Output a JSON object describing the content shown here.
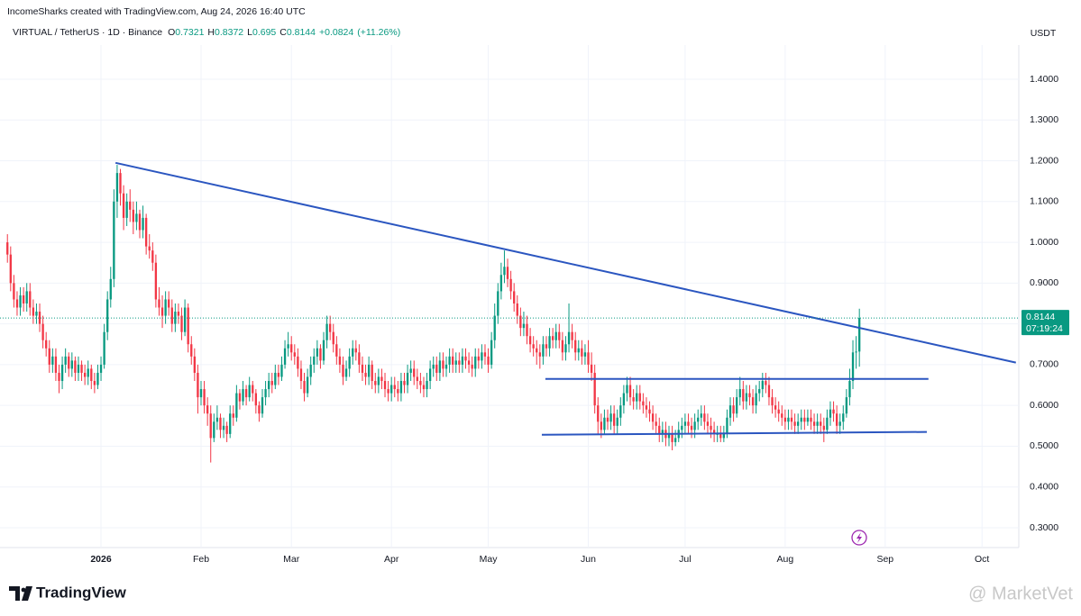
{
  "header": {
    "credit": "IncomeSharks created with TradingView.com, Aug 24, 2026 16:40 UTC",
    "symbol": "VIRTUAL / TetherUS · 1D · Binance",
    "o_label": "O",
    "h_label": "H",
    "l_label": "L",
    "c_label": "C",
    "change": "+0.0824",
    "change_percent": "(+11.26%)",
    "currency": "USDT",
    "countdown": "07:19:24"
  },
  "footer": {
    "logo": "TradingView",
    "watermark": "@ MarketVet"
  },
  "chart_data": {
    "type": "candlestick",
    "up_color": "#089981",
    "down_color": "#f23645",
    "grid": true,
    "xlim": [
      -31.3,
      284.4
    ],
    "ylim": [
      0.2514,
      1.4839
    ],
    "xticks": [
      {
        "value": 0,
        "label": "2026"
      },
      {
        "value": 31,
        "label": "Feb"
      },
      {
        "value": 59,
        "label": "Mar"
      },
      {
        "value": 90,
        "label": "Apr"
      },
      {
        "value": 120,
        "label": "May"
      },
      {
        "value": 151,
        "label": "Jun"
      },
      {
        "value": 181,
        "label": "Jul"
      },
      {
        "value": 212,
        "label": "Aug"
      },
      {
        "value": 243,
        "label": "Sep"
      },
      {
        "value": 273,
        "label": "Oct"
      }
    ],
    "yticks": [
      {
        "value": 0.3,
        "label": "0.3000"
      },
      {
        "value": 0.4,
        "label": "0.4000"
      },
      {
        "value": 0.5,
        "label": "0.5000"
      },
      {
        "value": 0.6,
        "label": "0.6000"
      },
      {
        "value": 0.7,
        "label": "0.7000"
      },
      {
        "value": 0.8,
        "label": "0.8000"
      },
      {
        "value": 0.9,
        "label": "0.9000"
      },
      {
        "value": 1.0,
        "label": "1.0000"
      },
      {
        "value": 1.1,
        "label": "1.1000"
      },
      {
        "value": 1.2,
        "label": "1.2000"
      },
      {
        "value": 1.3,
        "label": "1.3000"
      },
      {
        "value": 1.4,
        "label": "1.4000"
      }
    ],
    "x": [
      -29,
      -28,
      -27,
      -26,
      -25,
      -24,
      -23,
      -22,
      -21,
      -20,
      -19,
      -18,
      -17,
      -16,
      -15,
      -14,
      -13,
      -12,
      -11,
      -10,
      -9,
      -8,
      -7,
      -6,
      -5,
      -4,
      -3,
      -2,
      -1,
      0,
      1,
      2,
      3,
      4,
      5,
      6,
      7,
      8,
      9,
      10,
      11,
      12,
      13,
      14,
      15,
      16,
      17,
      18,
      19,
      20,
      21,
      22,
      23,
      24,
      25,
      26,
      27,
      28,
      29,
      30,
      31,
      32,
      33,
      34,
      35,
      36,
      37,
      38,
      39,
      40,
      41,
      42,
      43,
      44,
      45,
      46,
      47,
      48,
      49,
      50,
      51,
      52,
      53,
      54,
      55,
      56,
      57,
      58,
      59,
      60,
      61,
      62,
      63,
      64,
      65,
      66,
      67,
      68,
      69,
      70,
      71,
      72,
      73,
      74,
      75,
      76,
      77,
      78,
      79,
      80,
      81,
      82,
      83,
      84,
      85,
      86,
      87,
      88,
      89,
      90,
      91,
      92,
      93,
      94,
      95,
      96,
      97,
      98,
      99,
      100,
      101,
      102,
      103,
      104,
      105,
      106,
      107,
      108,
      109,
      110,
      111,
      112,
      113,
      114,
      115,
      116,
      117,
      118,
      119,
      120,
      121,
      122,
      123,
      124,
      125,
      126,
      127,
      128,
      129,
      130,
      131,
      132,
      133,
      134,
      135,
      136,
      137,
      138,
      139,
      140,
      141,
      142,
      143,
      144,
      145,
      146,
      147,
      148,
      149,
      150,
      151,
      152,
      153,
      154,
      155,
      156,
      157,
      158,
      159,
      160,
      161,
      162,
      163,
      164,
      165,
      166,
      167,
      168,
      169,
      170,
      171,
      172,
      173,
      174,
      175,
      176,
      177,
      178,
      179,
      180,
      181,
      182,
      183,
      184,
      185,
      186,
      187,
      188,
      189,
      190,
      191,
      192,
      193,
      194,
      195,
      196,
      197,
      198,
      199,
      200,
      201,
      202,
      203,
      204,
      205,
      206,
      207,
      208,
      209,
      210,
      211,
      212,
      213,
      214,
      215,
      216,
      217,
      218,
      219,
      220,
      221,
      222,
      223,
      224,
      225,
      226,
      227,
      228,
      229,
      230,
      231,
      232,
      233,
      234,
      235
    ],
    "open": [
      1.0,
      0.97,
      0.9,
      0.86,
      0.84,
      0.87,
      0.85,
      0.88,
      0.84,
      0.82,
      0.83,
      0.8,
      0.76,
      0.74,
      0.7,
      0.72,
      0.68,
      0.66,
      0.7,
      0.72,
      0.69,
      0.71,
      0.68,
      0.7,
      0.68,
      0.67,
      0.69,
      0.66,
      0.65,
      0.68,
      0.7,
      0.78,
      0.86,
      0.91,
      1.1,
      1.17,
      1.12,
      1.06,
      1.1,
      1.08,
      1.05,
      1.07,
      1.03,
      1.06,
      0.99,
      0.98,
      0.95,
      0.86,
      0.84,
      0.82,
      0.86,
      0.84,
      0.8,
      0.83,
      0.82,
      0.78,
      0.84,
      0.75,
      0.72,
      0.68,
      0.62,
      0.64,
      0.6,
      0.58,
      0.52,
      0.56,
      0.57,
      0.54,
      0.55,
      0.53,
      0.58,
      0.57,
      0.63,
      0.61,
      0.64,
      0.62,
      0.65,
      0.63,
      0.6,
      0.58,
      0.62,
      0.64,
      0.66,
      0.65,
      0.68,
      0.67,
      0.7,
      0.74,
      0.75,
      0.73,
      0.72,
      0.69,
      0.66,
      0.63,
      0.67,
      0.7,
      0.72,
      0.74,
      0.71,
      0.76,
      0.8,
      0.78,
      0.75,
      0.72,
      0.7,
      0.67,
      0.69,
      0.72,
      0.74,
      0.73,
      0.7,
      0.68,
      0.67,
      0.7,
      0.66,
      0.65,
      0.67,
      0.66,
      0.64,
      0.63,
      0.65,
      0.64,
      0.63,
      0.66,
      0.65,
      0.68,
      0.69,
      0.67,
      0.66,
      0.65,
      0.64,
      0.66,
      0.69,
      0.7,
      0.68,
      0.71,
      0.69,
      0.7,
      0.72,
      0.7,
      0.71,
      0.7,
      0.72,
      0.71,
      0.7,
      0.69,
      0.72,
      0.71,
      0.73,
      0.72,
      0.7,
      0.76,
      0.82,
      0.88,
      0.92,
      0.94,
      0.91,
      0.88,
      0.85,
      0.82,
      0.79,
      0.8,
      0.77,
      0.75,
      0.74,
      0.73,
      0.72,
      0.75,
      0.74,
      0.77,
      0.76,
      0.78,
      0.76,
      0.73,
      0.75,
      0.78,
      0.76,
      0.73,
      0.74,
      0.72,
      0.73,
      0.7,
      0.68,
      0.6,
      0.56,
      0.54,
      0.57,
      0.56,
      0.58,
      0.55,
      0.57,
      0.6,
      0.63,
      0.65,
      0.62,
      0.61,
      0.63,
      0.61,
      0.6,
      0.59,
      0.58,
      0.56,
      0.55,
      0.53,
      0.54,
      0.52,
      0.53,
      0.51,
      0.52,
      0.54,
      0.55,
      0.56,
      0.55,
      0.54,
      0.56,
      0.57,
      0.58,
      0.56,
      0.55,
      0.54,
      0.53,
      0.53,
      0.52,
      0.53,
      0.57,
      0.6,
      0.58,
      0.62,
      0.64,
      0.61,
      0.63,
      0.62,
      0.6,
      0.63,
      0.64,
      0.66,
      0.65,
      0.62,
      0.6,
      0.59,
      0.58,
      0.57,
      0.56,
      0.57,
      0.56,
      0.55,
      0.56,
      0.57,
      0.56,
      0.57,
      0.56,
      0.55,
      0.56,
      0.55,
      0.54,
      0.57,
      0.59,
      0.58,
      0.55,
      0.56,
      0.58,
      0.62,
      0.66,
      0.73,
      0.7321
    ],
    "high": [
      1.02,
      0.99,
      0.92,
      0.88,
      0.89,
      0.89,
      0.9,
      0.9,
      0.86,
      0.85,
      0.85,
      0.82,
      0.78,
      0.76,
      0.74,
      0.74,
      0.7,
      0.72,
      0.74,
      0.73,
      0.73,
      0.72,
      0.72,
      0.71,
      0.7,
      0.71,
      0.7,
      0.68,
      0.7,
      0.72,
      0.8,
      0.88,
      0.94,
      1.13,
      1.19,
      1.18,
      1.14,
      1.12,
      1.13,
      1.1,
      1.1,
      1.08,
      1.09,
      1.07,
      1.02,
      1.0,
      0.97,
      0.89,
      0.87,
      0.88,
      0.88,
      0.86,
      0.85,
      0.85,
      0.84,
      0.86,
      0.85,
      0.77,
      0.74,
      0.7,
      0.66,
      0.66,
      0.62,
      0.6,
      0.58,
      0.6,
      0.58,
      0.57,
      0.56,
      0.6,
      0.6,
      0.65,
      0.64,
      0.66,
      0.65,
      0.67,
      0.66,
      0.64,
      0.61,
      0.64,
      0.66,
      0.68,
      0.68,
      0.7,
      0.7,
      0.72,
      0.76,
      0.78,
      0.77,
      0.75,
      0.74,
      0.71,
      0.68,
      0.69,
      0.72,
      0.74,
      0.76,
      0.75,
      0.78,
      0.82,
      0.82,
      0.8,
      0.77,
      0.74,
      0.72,
      0.71,
      0.74,
      0.76,
      0.76,
      0.75,
      0.72,
      0.7,
      0.72,
      0.71,
      0.68,
      0.69,
      0.69,
      0.68,
      0.66,
      0.67,
      0.67,
      0.66,
      0.68,
      0.68,
      0.7,
      0.71,
      0.71,
      0.69,
      0.68,
      0.67,
      0.68,
      0.71,
      0.72,
      0.72,
      0.73,
      0.73,
      0.72,
      0.74,
      0.74,
      0.73,
      0.73,
      0.74,
      0.74,
      0.73,
      0.72,
      0.74,
      0.74,
      0.75,
      0.75,
      0.74,
      0.78,
      0.85,
      0.9,
      0.95,
      0.98,
      0.96,
      0.93,
      0.9,
      0.87,
      0.84,
      0.83,
      0.82,
      0.79,
      0.77,
      0.76,
      0.75,
      0.77,
      0.77,
      0.79,
      0.79,
      0.8,
      0.8,
      0.78,
      0.77,
      0.85,
      0.8,
      0.78,
      0.76,
      0.76,
      0.75,
      0.76,
      0.73,
      0.7,
      0.62,
      0.58,
      0.59,
      0.59,
      0.6,
      0.6,
      0.59,
      0.62,
      0.65,
      0.67,
      0.67,
      0.64,
      0.65,
      0.65,
      0.63,
      0.62,
      0.61,
      0.6,
      0.58,
      0.57,
      0.56,
      0.56,
      0.55,
      0.55,
      0.54,
      0.56,
      0.57,
      0.58,
      0.58,
      0.57,
      0.58,
      0.59,
      0.6,
      0.6,
      0.58,
      0.57,
      0.56,
      0.55,
      0.55,
      0.55,
      0.59,
      0.62,
      0.62,
      0.64,
      0.67,
      0.66,
      0.65,
      0.65,
      0.64,
      0.65,
      0.66,
      0.68,
      0.68,
      0.67,
      0.64,
      0.62,
      0.61,
      0.6,
      0.59,
      0.59,
      0.59,
      0.58,
      0.58,
      0.59,
      0.59,
      0.59,
      0.59,
      0.58,
      0.58,
      0.58,
      0.57,
      0.59,
      0.61,
      0.61,
      0.6,
      0.58,
      0.6,
      0.64,
      0.69,
      0.76,
      0.77,
      0.8372
    ],
    "low": [
      0.95,
      0.88,
      0.84,
      0.82,
      0.82,
      0.83,
      0.83,
      0.82,
      0.8,
      0.8,
      0.78,
      0.74,
      0.72,
      0.68,
      0.68,
      0.66,
      0.63,
      0.64,
      0.68,
      0.67,
      0.67,
      0.66,
      0.66,
      0.66,
      0.65,
      0.65,
      0.64,
      0.63,
      0.64,
      0.66,
      0.69,
      0.76,
      0.84,
      0.89,
      1.06,
      1.09,
      1.03,
      1.04,
      1.05,
      1.02,
      1.03,
      1.01,
      1.01,
      0.97,
      0.96,
      0.93,
      0.84,
      0.82,
      0.79,
      0.8,
      0.82,
      0.78,
      0.78,
      0.8,
      0.76,
      0.77,
      0.73,
      0.7,
      0.66,
      0.58,
      0.6,
      0.58,
      0.55,
      0.46,
      0.51,
      0.54,
      0.52,
      0.52,
      0.51,
      0.52,
      0.55,
      0.56,
      0.59,
      0.6,
      0.6,
      0.61,
      0.61,
      0.58,
      0.56,
      0.57,
      0.6,
      0.62,
      0.63,
      0.64,
      0.65,
      0.66,
      0.69,
      0.72,
      0.71,
      0.7,
      0.67,
      0.64,
      0.61,
      0.62,
      0.65,
      0.68,
      0.7,
      0.69,
      0.7,
      0.74,
      0.76,
      0.73,
      0.7,
      0.68,
      0.65,
      0.66,
      0.67,
      0.7,
      0.71,
      0.68,
      0.66,
      0.65,
      0.65,
      0.64,
      0.63,
      0.63,
      0.64,
      0.62,
      0.61,
      0.61,
      0.62,
      0.61,
      0.61,
      0.63,
      0.63,
      0.66,
      0.65,
      0.64,
      0.63,
      0.62,
      0.62,
      0.64,
      0.67,
      0.66,
      0.66,
      0.67,
      0.67,
      0.68,
      0.68,
      0.68,
      0.68,
      0.68,
      0.69,
      0.68,
      0.67,
      0.67,
      0.69,
      0.69,
      0.7,
      0.68,
      0.69,
      0.74,
      0.8,
      0.86,
      0.9,
      0.89,
      0.86,
      0.83,
      0.8,
      0.77,
      0.77,
      0.75,
      0.73,
      0.72,
      0.7,
      0.69,
      0.7,
      0.72,
      0.72,
      0.74,
      0.74,
      0.74,
      0.71,
      0.71,
      0.73,
      0.74,
      0.71,
      0.71,
      0.7,
      0.7,
      0.68,
      0.66,
      0.58,
      0.53,
      0.52,
      0.53,
      0.54,
      0.54,
      0.53,
      0.53,
      0.55,
      0.58,
      0.61,
      0.6,
      0.59,
      0.59,
      0.59,
      0.58,
      0.57,
      0.56,
      0.54,
      0.53,
      0.51,
      0.51,
      0.5,
      0.5,
      0.49,
      0.5,
      0.51,
      0.52,
      0.53,
      0.53,
      0.52,
      0.52,
      0.54,
      0.55,
      0.54,
      0.53,
      0.52,
      0.51,
      0.51,
      0.51,
      0.51,
      0.52,
      0.55,
      0.56,
      0.57,
      0.6,
      0.59,
      0.59,
      0.6,
      0.58,
      0.58,
      0.61,
      0.62,
      0.63,
      0.6,
      0.58,
      0.57,
      0.56,
      0.55,
      0.54,
      0.54,
      0.54,
      0.53,
      0.53,
      0.54,
      0.54,
      0.55,
      0.54,
      0.53,
      0.53,
      0.53,
      0.51,
      0.53,
      0.55,
      0.56,
      0.53,
      0.53,
      0.54,
      0.57,
      0.6,
      0.64,
      0.69,
      0.695
    ],
    "close": [
      0.97,
      0.9,
      0.86,
      0.84,
      0.87,
      0.85,
      0.88,
      0.84,
      0.82,
      0.83,
      0.8,
      0.76,
      0.74,
      0.7,
      0.72,
      0.68,
      0.66,
      0.7,
      0.72,
      0.69,
      0.71,
      0.68,
      0.7,
      0.68,
      0.67,
      0.69,
      0.66,
      0.65,
      0.68,
      0.7,
      0.78,
      0.86,
      0.91,
      1.1,
      1.17,
      1.12,
      1.06,
      1.1,
      1.08,
      1.05,
      1.07,
      1.03,
      1.06,
      0.99,
      0.98,
      0.95,
      0.86,
      0.84,
      0.82,
      0.86,
      0.84,
      0.8,
      0.83,
      0.82,
      0.78,
      0.84,
      0.75,
      0.72,
      0.68,
      0.62,
      0.64,
      0.6,
      0.58,
      0.52,
      0.56,
      0.57,
      0.54,
      0.55,
      0.53,
      0.58,
      0.57,
      0.63,
      0.61,
      0.64,
      0.62,
      0.65,
      0.63,
      0.6,
      0.58,
      0.62,
      0.64,
      0.66,
      0.65,
      0.68,
      0.67,
      0.7,
      0.74,
      0.75,
      0.73,
      0.72,
      0.69,
      0.66,
      0.63,
      0.67,
      0.7,
      0.72,
      0.74,
      0.71,
      0.76,
      0.8,
      0.78,
      0.75,
      0.72,
      0.7,
      0.67,
      0.69,
      0.72,
      0.74,
      0.73,
      0.7,
      0.68,
      0.67,
      0.7,
      0.66,
      0.65,
      0.67,
      0.66,
      0.64,
      0.63,
      0.65,
      0.64,
      0.63,
      0.66,
      0.65,
      0.68,
      0.69,
      0.67,
      0.66,
      0.65,
      0.64,
      0.66,
      0.69,
      0.7,
      0.68,
      0.71,
      0.69,
      0.7,
      0.72,
      0.7,
      0.71,
      0.7,
      0.72,
      0.71,
      0.7,
      0.69,
      0.72,
      0.71,
      0.73,
      0.72,
      0.7,
      0.76,
      0.82,
      0.88,
      0.92,
      0.94,
      0.91,
      0.88,
      0.85,
      0.82,
      0.79,
      0.8,
      0.77,
      0.75,
      0.74,
      0.73,
      0.72,
      0.75,
      0.74,
      0.77,
      0.76,
      0.78,
      0.76,
      0.73,
      0.75,
      0.78,
      0.76,
      0.73,
      0.74,
      0.72,
      0.73,
      0.7,
      0.68,
      0.6,
      0.56,
      0.54,
      0.57,
      0.56,
      0.58,
      0.55,
      0.57,
      0.6,
      0.63,
      0.65,
      0.62,
      0.61,
      0.63,
      0.61,
      0.6,
      0.59,
      0.58,
      0.56,
      0.55,
      0.53,
      0.54,
      0.52,
      0.53,
      0.51,
      0.52,
      0.54,
      0.55,
      0.56,
      0.55,
      0.54,
      0.56,
      0.57,
      0.58,
      0.56,
      0.55,
      0.54,
      0.53,
      0.53,
      0.52,
      0.53,
      0.57,
      0.6,
      0.58,
      0.62,
      0.64,
      0.61,
      0.63,
      0.62,
      0.6,
      0.63,
      0.64,
      0.66,
      0.65,
      0.62,
      0.6,
      0.59,
      0.58,
      0.57,
      0.56,
      0.57,
      0.56,
      0.55,
      0.56,
      0.57,
      0.56,
      0.57,
      0.56,
      0.55,
      0.56,
      0.55,
      0.54,
      0.57,
      0.59,
      0.58,
      0.55,
      0.56,
      0.58,
      0.62,
      0.66,
      0.73,
      0.7321,
      0.8144
    ],
    "trend_lines": [
      {
        "color": "#2b56c0",
        "x": [
          4.5,
          283.5
        ],
        "y": [
          1.195,
          0.705
        ]
      },
      {
        "color": "#2b56c0",
        "x": [
          137.7,
          256.4
        ],
        "y": [
          0.665,
          0.665
        ]
      },
      {
        "color": "#2b56c0",
        "x": [
          136.6,
          255.9
        ],
        "y": [
          0.528,
          0.535
        ]
      }
    ]
  }
}
